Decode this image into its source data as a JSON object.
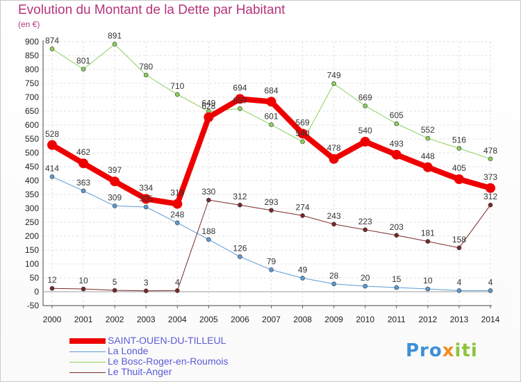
{
  "title": "Evolution du Montant de la Dette par Habitant",
  "unit": "(en €)",
  "brand": "Proxiti",
  "chart_data": {
    "type": "line",
    "title": "Evolution du Montant de la Dette par Habitant",
    "ylabel": "(en €)",
    "ylim": [
      -50,
      900
    ],
    "y_ticks": [
      -50,
      0,
      50,
      100,
      150,
      200,
      250,
      300,
      350,
      400,
      450,
      500,
      550,
      600,
      650,
      700,
      750,
      800,
      850,
      900
    ],
    "x": [
      "2000",
      "2001",
      "2002",
      "2003",
      "2004",
      "2005",
      "2006",
      "2007",
      "2008",
      "2009",
      "2010",
      "2011",
      "2012",
      "2013",
      "2014"
    ],
    "grid": true,
    "legend_position": "bottom-left",
    "series": [
      {
        "name": "SAINT-OUEN-DU-TILLEUL",
        "color": "#ee0000",
        "line_width": 8,
        "values": [
          528,
          462,
          397,
          334,
          316,
          628,
          694,
          684,
          569,
          478,
          540,
          493,
          448,
          405,
          373
        ]
      },
      {
        "name": "La Londe",
        "color": "#5b9ad5",
        "line_width": 1,
        "values": [
          414,
          363,
          309,
          305,
          248,
          188,
          126,
          79,
          49,
          28,
          20,
          15,
          10,
          4,
          4
        ]
      },
      {
        "name": "Le Bosc-Roger-en-Roumois",
        "color": "#8cd05a",
        "line_width": 1,
        "values": [
          874,
          801,
          891,
          780,
          710,
          649,
          659,
          601,
          540,
          749,
          669,
          605,
          552,
          516,
          478
        ]
      },
      {
        "name": "Le Thuit-Anger",
        "color": "#7a2828",
        "line_width": 1,
        "values": [
          12,
          10,
          5,
          3,
          4,
          330,
          312,
          293,
          274,
          243,
          223,
          203,
          181,
          158,
          312
        ]
      }
    ],
    "data_labels": [
      [
        "528",
        "462",
        "397",
        "334",
        "316",
        "628",
        "694",
        "684",
        "569",
        "478",
        "540",
        "493",
        "448",
        "405",
        "373"
      ],
      [
        "414",
        "363",
        "309",
        "305",
        "248",
        "188",
        "126",
        "79",
        "49",
        "28",
        "20",
        "15",
        "10",
        "4",
        "4"
      ],
      [
        "874",
        "801",
        "891",
        "780",
        "710",
        "649",
        "659",
        "601",
        "540",
        "749",
        "669",
        "605",
        "552",
        "516",
        "478"
      ],
      [
        "12",
        "10",
        "5",
        "3",
        "4",
        "330",
        "312",
        "293",
        "274",
        "243",
        "223",
        "203",
        "181",
        "158",
        "312"
      ]
    ]
  }
}
